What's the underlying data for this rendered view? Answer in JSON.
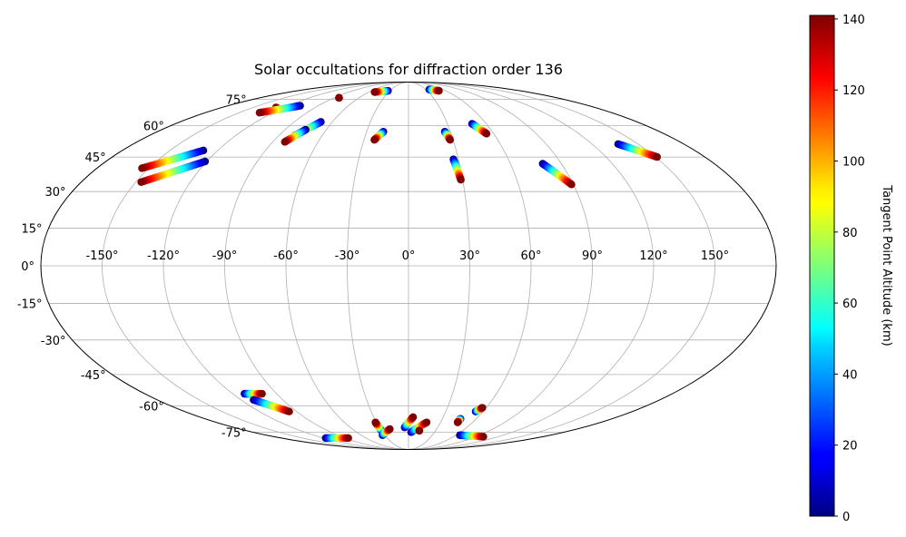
{
  "chart_data": {
    "type": "scatter",
    "projection": "mollweide",
    "title": "Solar occultations for diffraction order 136",
    "grid": true,
    "x_ticks": [
      "-150°",
      "-120°",
      "-90°",
      "-60°",
      "-30°",
      "0°",
      "30°",
      "60°",
      "90°",
      "120°",
      "150°"
    ],
    "x_tick_values": [
      -150,
      -120,
      -90,
      -60,
      -30,
      0,
      30,
      60,
      90,
      120,
      150
    ],
    "y_ticks": [
      "75°",
      "60°",
      "45°",
      "30°",
      "15°",
      "0°",
      "-15°",
      "-30°",
      "-45°",
      "-60°",
      "-75°"
    ],
    "y_tick_values": [
      75,
      60,
      45,
      30,
      15,
      0,
      -15,
      -30,
      -45,
      -60,
      -75
    ],
    "colorbar": {
      "label": "Tangent Point Altitude (km)",
      "colormap": "jet",
      "range": [
        0,
        141
      ],
      "ticks": [
        "0",
        "20",
        "40",
        "60",
        "80",
        "100",
        "120",
        "140"
      ],
      "tick_values": [
        0,
        20,
        40,
        60,
        80,
        100,
        120,
        140
      ]
    },
    "series": [
      {
        "lon_start": -121,
        "lat_start": 69,
        "lon_end": -128,
        "lat_end": 70
      },
      {
        "lon_start": -108,
        "lat_start": 71,
        "lon_end": -132,
        "lat_end": 67
      },
      {
        "lon_start": -84,
        "lat_start": 76,
        "lon_end": -84,
        "lat_end": 76
      },
      {
        "lon_start": -69,
        "lat_start": 62,
        "lon_end": -79,
        "lat_end": 55
      },
      {
        "lon_start": -75,
        "lat_start": 58,
        "lon_end": -82,
        "lat_end": 52
      },
      {
        "lon_start": -33,
        "lat_start": 81,
        "lon_end": -51,
        "lat_end": 80
      },
      {
        "lon_start": -129,
        "lat_start": 48,
        "lon_end": -154,
        "lat_end": 40
      },
      {
        "lon_start": -121,
        "lat_start": 43,
        "lon_end": -147,
        "lat_end": 34
      },
      {
        "lon_start": -18,
        "lat_start": 57,
        "lon_end": -23,
        "lat_end": 53
      },
      {
        "lon_start": 26,
        "lat_start": 57,
        "lon_end": 28,
        "lat_end": 53
      },
      {
        "lon_start": 36,
        "lat_start": 82,
        "lon_end": 49,
        "lat_end": 81
      },
      {
        "lon_start": 49,
        "lat_start": 61,
        "lon_end": 55,
        "lat_end": 56
      },
      {
        "lon_start": 27,
        "lat_start": 44,
        "lon_end": 29,
        "lat_end": 35
      },
      {
        "lon_start": 79,
        "lat_start": 42,
        "lon_end": 89,
        "lat_end": 33
      },
      {
        "lon_start": 137,
        "lat_start": 51,
        "lon_end": 151,
        "lat_end": 45
      },
      {
        "lon_start": -112,
        "lat_start": -54,
        "lon_end": -100,
        "lat_end": -54
      },
      {
        "lon_start": -111,
        "lat_start": -57,
        "lon_end": -96,
        "lat_end": -63
      },
      {
        "lon_start": -117,
        "lat_start": -79,
        "lon_end": -85,
        "lat_end": -79
      },
      {
        "lon_start": -30,
        "lat_start": -74,
        "lon_end": -31,
        "lat_end": -69
      },
      {
        "lon_start": -33,
        "lat_start": -77,
        "lon_end": -20,
        "lat_end": -73
      },
      {
        "lon_start": -4,
        "lat_start": -72,
        "lon_end": 4,
        "lat_end": -66
      },
      {
        "lon_start": 3,
        "lat_start": -75,
        "lon_end": 17,
        "lat_end": -69
      },
      {
        "lon_start": 12,
        "lat_start": -74,
        "lon_end": 12,
        "lat_end": -74
      },
      {
        "lon_start": 65,
        "lat_start": -77,
        "lon_end": 100,
        "lat_end": -78
      },
      {
        "lon_start": 46,
        "lat_start": -67,
        "lon_end": 46,
        "lat_end": -69
      },
      {
        "lon_start": 54,
        "lat_start": -63,
        "lon_end": 57,
        "lat_end": -61
      }
    ]
  }
}
